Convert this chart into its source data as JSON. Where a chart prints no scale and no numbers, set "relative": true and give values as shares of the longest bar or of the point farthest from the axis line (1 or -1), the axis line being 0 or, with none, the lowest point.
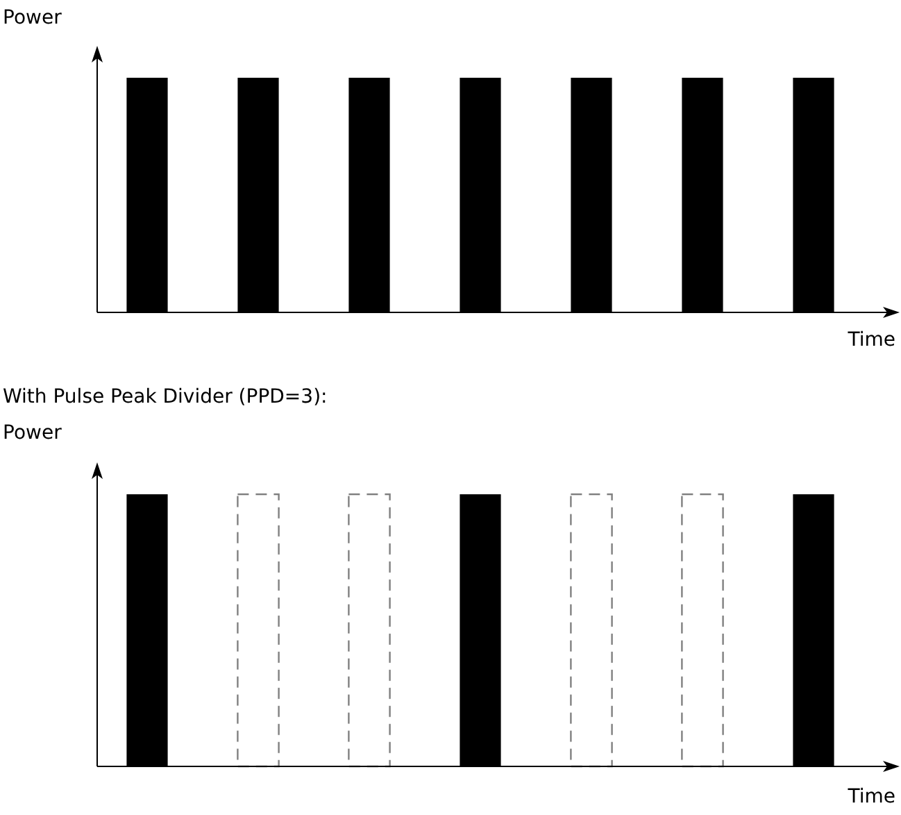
{
  "chart_data": [
    {
      "type": "bar",
      "relative": true,
      "xlabel": "Time",
      "ylabel": "Power",
      "categories": [
        null,
        null,
        null,
        null,
        null,
        null,
        null
      ],
      "series": [
        {
          "color": "#000000",
          "values": [
            1,
            1,
            1,
            1,
            1,
            1,
            1
          ]
        }
      ],
      "legend": false,
      "grid": false
    },
    {
      "type": "bar",
      "relative": true,
      "stacked": true,
      "title": "With Pulse Peak Divider (PPD=3):",
      "xlabel": "Time",
      "ylabel": "Power",
      "categories": [
        null,
        null,
        null,
        null,
        null,
        null,
        null
      ],
      "series": [
        {
          "color": "#000000",
          "values": [
            1,
            null,
            null,
            1,
            null,
            null,
            1
          ]
        },
        {
          "color": "#808080",
          "line_style": "dashed",
          "values": [
            null,
            1,
            1,
            null,
            1,
            1,
            null
          ]
        }
      ],
      "legend": false,
      "grid": false
    }
  ]
}
